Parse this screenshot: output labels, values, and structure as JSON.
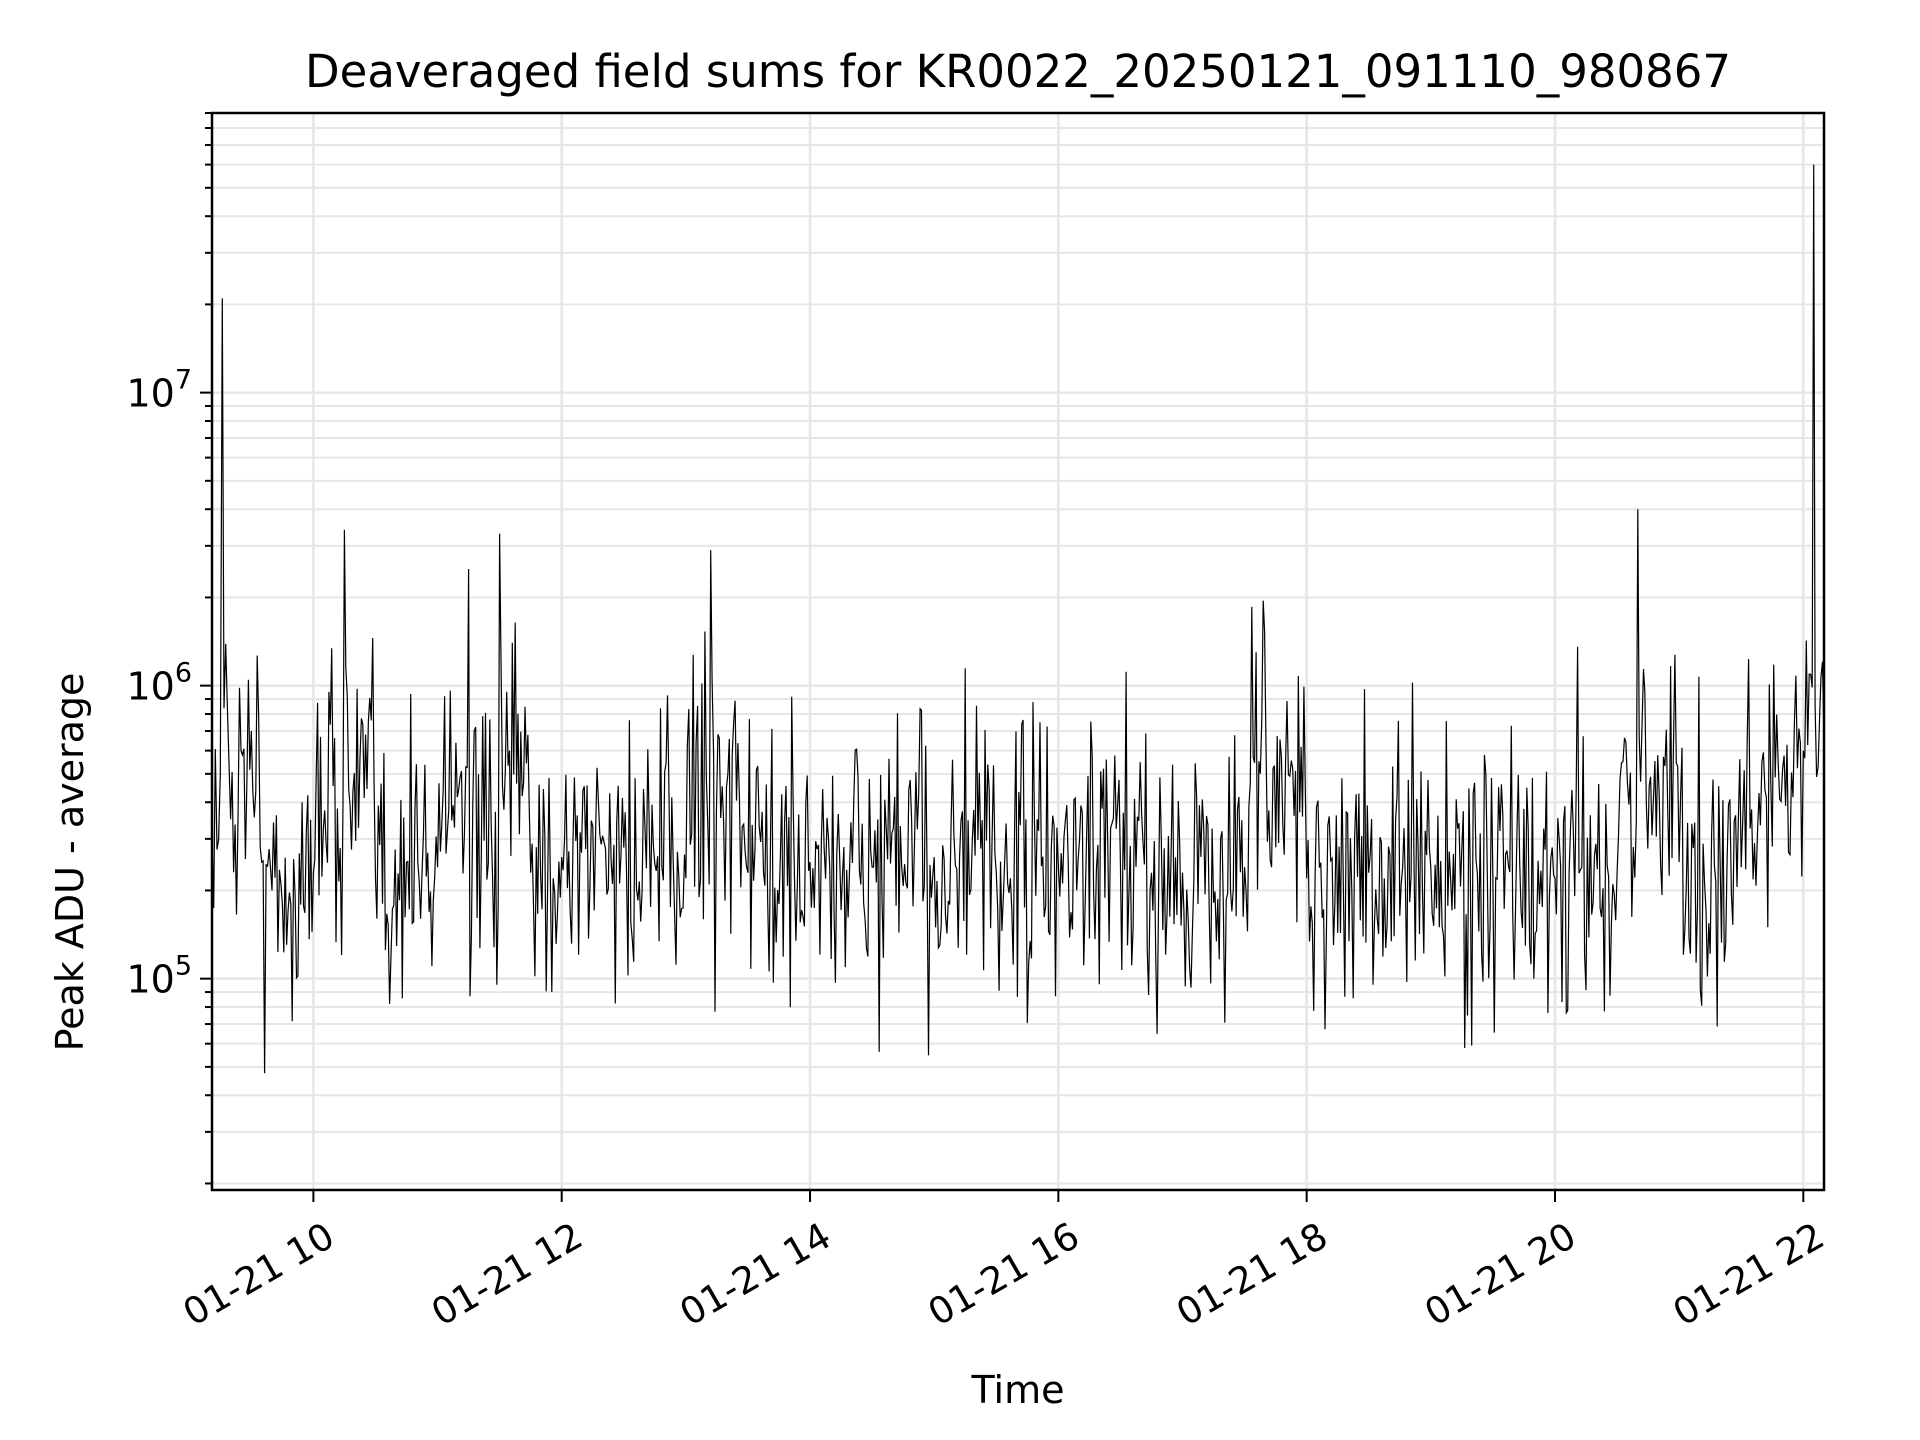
{
  "chart_data": {
    "type": "line",
    "title": "Deaveraged field sums for KR0022_20250121_091110_980867",
    "xlabel": "Time",
    "ylabel": "Peak ADU - average",
    "y_scale": "log",
    "ylim": [
      19000,
      90000000
    ],
    "y_ticks": [
      {
        "value": 100000,
        "base": "10",
        "exp": "5"
      },
      {
        "value": 1000000,
        "base": "10",
        "exp": "6"
      },
      {
        "value": 10000000,
        "base": "10",
        "exp": "7"
      }
    ],
    "xlim": [
      "2025-01-21 09:11",
      "2025-01-21 22:10"
    ],
    "x_ticks": [
      {
        "value": "2025-01-21 10:00",
        "label": "01-21 10"
      },
      {
        "value": "2025-01-21 12:00",
        "label": "01-21 12"
      },
      {
        "value": "2025-01-21 14:00",
        "label": "01-21 14"
      },
      {
        "value": "2025-01-21 16:00",
        "label": "01-21 16"
      },
      {
        "value": "2025-01-21 18:00",
        "label": "01-21 18"
      },
      {
        "value": "2025-01-21 20:00",
        "label": "01-21 20"
      },
      {
        "value": "2025-01-21 22:00",
        "label": "01-21 22"
      }
    ],
    "grid": true,
    "line_color": "#000000",
    "series": [
      {
        "x": [
          "2025-01-21 09:11",
          "2025-01-21 09:15",
          "2025-01-21 09:16",
          "2025-01-21 09:20",
          "2025-01-21 09:25",
          "2025-01-21 09:30",
          "2025-01-21 09:35",
          "2025-01-21 09:40",
          "2025-01-21 09:45",
          "2025-01-21 10:00",
          "2025-01-21 10:15",
          "2025-01-21 10:30",
          "2025-01-21 10:45",
          "2025-01-21 11:00",
          "2025-01-21 11:15",
          "2025-01-21 11:30",
          "2025-01-21 11:45",
          "2025-01-21 12:00",
          "2025-01-21 12:30",
          "2025-01-21 13:00",
          "2025-01-21 13:12",
          "2025-01-21 13:30",
          "2025-01-21 14:00",
          "2025-01-21 14:30",
          "2025-01-21 15:00",
          "2025-01-21 15:30",
          "2025-01-21 16:00",
          "2025-01-21 16:30",
          "2025-01-21 17:00",
          "2025-01-21 17:30",
          "2025-01-21 17:39",
          "2025-01-21 18:00",
          "2025-01-21 18:30",
          "2025-01-21 19:00",
          "2025-01-21 19:30",
          "2025-01-21 20:00",
          "2025-01-21 20:30",
          "2025-01-21 20:40",
          "2025-01-21 21:00",
          "2025-01-21 21:30",
          "2025-01-21 21:40",
          "2025-01-21 21:50",
          "2025-01-21 22:00",
          "2025-01-21 22:05",
          "2025-01-21 22:10"
        ],
        "y": [
          300000,
          500000,
          21000000,
          350000,
          600000,
          700000,
          250000,
          200000,
          180000,
          230000,
          3400000,
          220000,
          250000,
          240000,
          2500000,
          3300000,
          230000,
          260000,
          280000,
          220000,
          2900000,
          230000,
          250000,
          240000,
          260000,
          230000,
          240000,
          250000,
          230000,
          240000,
          1950000,
          220000,
          230000,
          240000,
          220000,
          220000,
          230000,
          4000000,
          250000,
          240000,
          550000,
          520000,
          600000,
          60000000,
          650000
        ]
      }
    ]
  }
}
